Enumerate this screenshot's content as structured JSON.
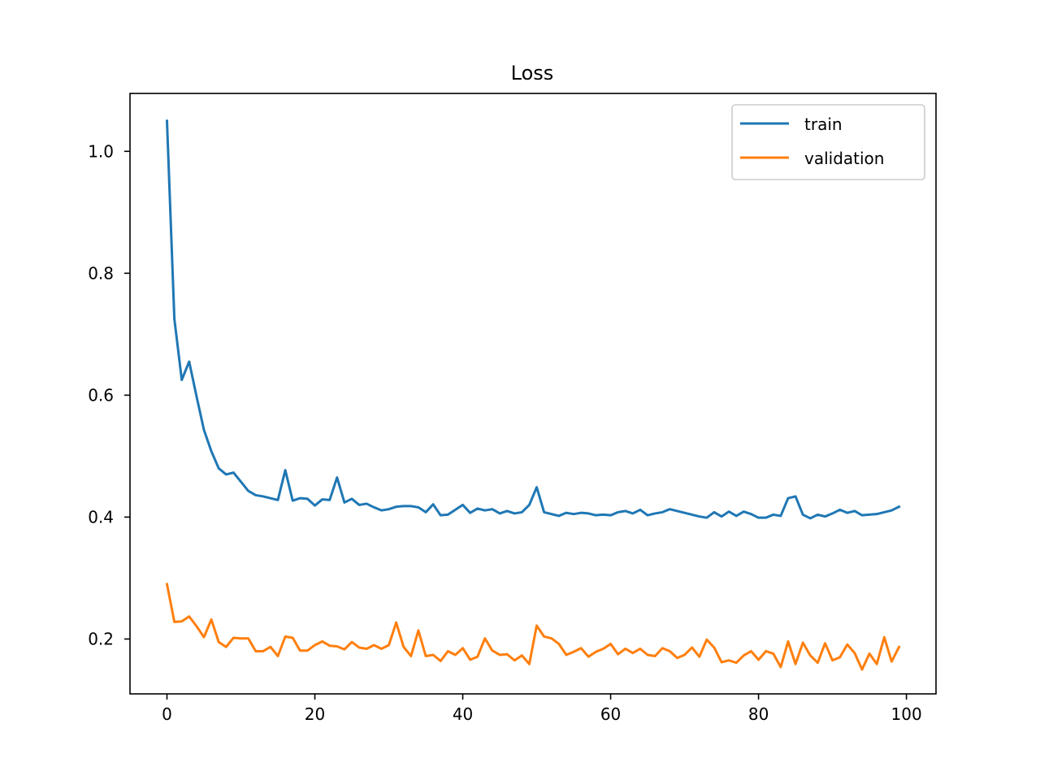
{
  "chart_data": {
    "type": "line",
    "title": "Loss",
    "xlabel": "",
    "ylabel": "",
    "xlim": [
      -5,
      104
    ],
    "ylim": [
      0.11,
      1.095
    ],
    "xticks": [
      0,
      20,
      40,
      60,
      80,
      100
    ],
    "yticks": [
      0.2,
      0.4,
      0.6,
      0.8,
      1.0
    ],
    "xtick_labels": [
      "0",
      "20",
      "40",
      "60",
      "80",
      "100"
    ],
    "ytick_labels": [
      "0.2",
      "0.4",
      "0.6",
      "0.8",
      "1.0"
    ],
    "grid": false,
    "legend_position": "top-right",
    "series": [
      {
        "name": "train",
        "color": "#1f77b4",
        "x": [
          0,
          1,
          2,
          3,
          4,
          5,
          6,
          7,
          8,
          9,
          10,
          11,
          12,
          13,
          14,
          15,
          16,
          17,
          18,
          19,
          20,
          21,
          22,
          23,
          24,
          25,
          26,
          27,
          28,
          29,
          30,
          31,
          32,
          33,
          34,
          35,
          36,
          37,
          38,
          39,
          40,
          41,
          42,
          43,
          44,
          45,
          46,
          47,
          48,
          49,
          50,
          51,
          52,
          53,
          54,
          55,
          56,
          57,
          58,
          59,
          60,
          61,
          62,
          63,
          64,
          65,
          66,
          67,
          68,
          69,
          70,
          71,
          72,
          73,
          74,
          75,
          76,
          77,
          78,
          79,
          80,
          81,
          82,
          83,
          84,
          85,
          86,
          87,
          88,
          89,
          90,
          91,
          92,
          93,
          94,
          95,
          96,
          97,
          98,
          99
        ],
        "values": [
          1.05,
          0.725,
          0.625,
          0.655,
          0.598,
          0.543,
          0.508,
          0.48,
          0.47,
          0.473,
          0.458,
          0.443,
          0.436,
          0.434,
          0.431,
          0.428,
          0.477,
          0.427,
          0.431,
          0.43,
          0.419,
          0.429,
          0.428,
          0.465,
          0.424,
          0.43,
          0.42,
          0.422,
          0.416,
          0.411,
          0.413,
          0.417,
          0.418,
          0.418,
          0.416,
          0.408,
          0.421,
          0.403,
          0.404,
          0.412,
          0.42,
          0.407,
          0.414,
          0.411,
          0.413,
          0.406,
          0.41,
          0.406,
          0.408,
          0.42,
          0.449,
          0.408,
          0.405,
          0.402,
          0.407,
          0.405,
          0.407,
          0.406,
          0.403,
          0.404,
          0.403,
          0.408,
          0.41,
          0.406,
          0.412,
          0.403,
          0.406,
          0.408,
          0.413,
          0.41,
          0.407,
          0.404,
          0.401,
          0.399,
          0.408,
          0.401,
          0.409,
          0.402,
          0.409,
          0.405,
          0.399,
          0.399,
          0.404,
          0.402,
          0.431,
          0.434,
          0.404,
          0.398,
          0.404,
          0.401,
          0.406,
          0.412,
          0.407,
          0.41,
          0.403,
          0.404,
          0.405,
          0.408,
          0.411,
          0.417
        ]
      },
      {
        "name": "validation",
        "color": "#ff7f0e",
        "x": [
          0,
          1,
          2,
          3,
          4,
          5,
          6,
          7,
          8,
          9,
          10,
          11,
          12,
          13,
          14,
          15,
          16,
          17,
          18,
          19,
          20,
          21,
          22,
          23,
          24,
          25,
          26,
          27,
          28,
          29,
          30,
          31,
          32,
          33,
          34,
          35,
          36,
          37,
          38,
          39,
          40,
          41,
          42,
          43,
          44,
          45,
          46,
          47,
          48,
          49,
          50,
          51,
          52,
          53,
          54,
          55,
          56,
          57,
          58,
          59,
          60,
          61,
          62,
          63,
          64,
          65,
          66,
          67,
          68,
          69,
          70,
          71,
          72,
          73,
          74,
          75,
          76,
          77,
          78,
          79,
          80,
          81,
          82,
          83,
          84,
          85,
          86,
          87,
          88,
          89,
          90,
          91,
          92,
          93,
          94,
          95,
          96,
          97,
          98,
          99
        ],
        "values": [
          0.29,
          0.228,
          0.229,
          0.237,
          0.221,
          0.203,
          0.232,
          0.195,
          0.187,
          0.202,
          0.201,
          0.201,
          0.18,
          0.18,
          0.187,
          0.172,
          0.204,
          0.202,
          0.181,
          0.181,
          0.19,
          0.196,
          0.189,
          0.188,
          0.183,
          0.195,
          0.186,
          0.184,
          0.19,
          0.184,
          0.19,
          0.227,
          0.187,
          0.172,
          0.214,
          0.172,
          0.174,
          0.164,
          0.18,
          0.174,
          0.185,
          0.166,
          0.171,
          0.201,
          0.181,
          0.174,
          0.175,
          0.165,
          0.173,
          0.159,
          0.222,
          0.204,
          0.201,
          0.192,
          0.174,
          0.179,
          0.185,
          0.171,
          0.179,
          0.184,
          0.192,
          0.175,
          0.184,
          0.177,
          0.184,
          0.174,
          0.172,
          0.185,
          0.18,
          0.169,
          0.174,
          0.186,
          0.171,
          0.199,
          0.186,
          0.162,
          0.165,
          0.161,
          0.173,
          0.18,
          0.166,
          0.18,
          0.176,
          0.154,
          0.196,
          0.159,
          0.194,
          0.173,
          0.161,
          0.193,
          0.165,
          0.17,
          0.191,
          0.177,
          0.15,
          0.176,
          0.159,
          0.203,
          0.163,
          0.187
        ]
      }
    ]
  }
}
